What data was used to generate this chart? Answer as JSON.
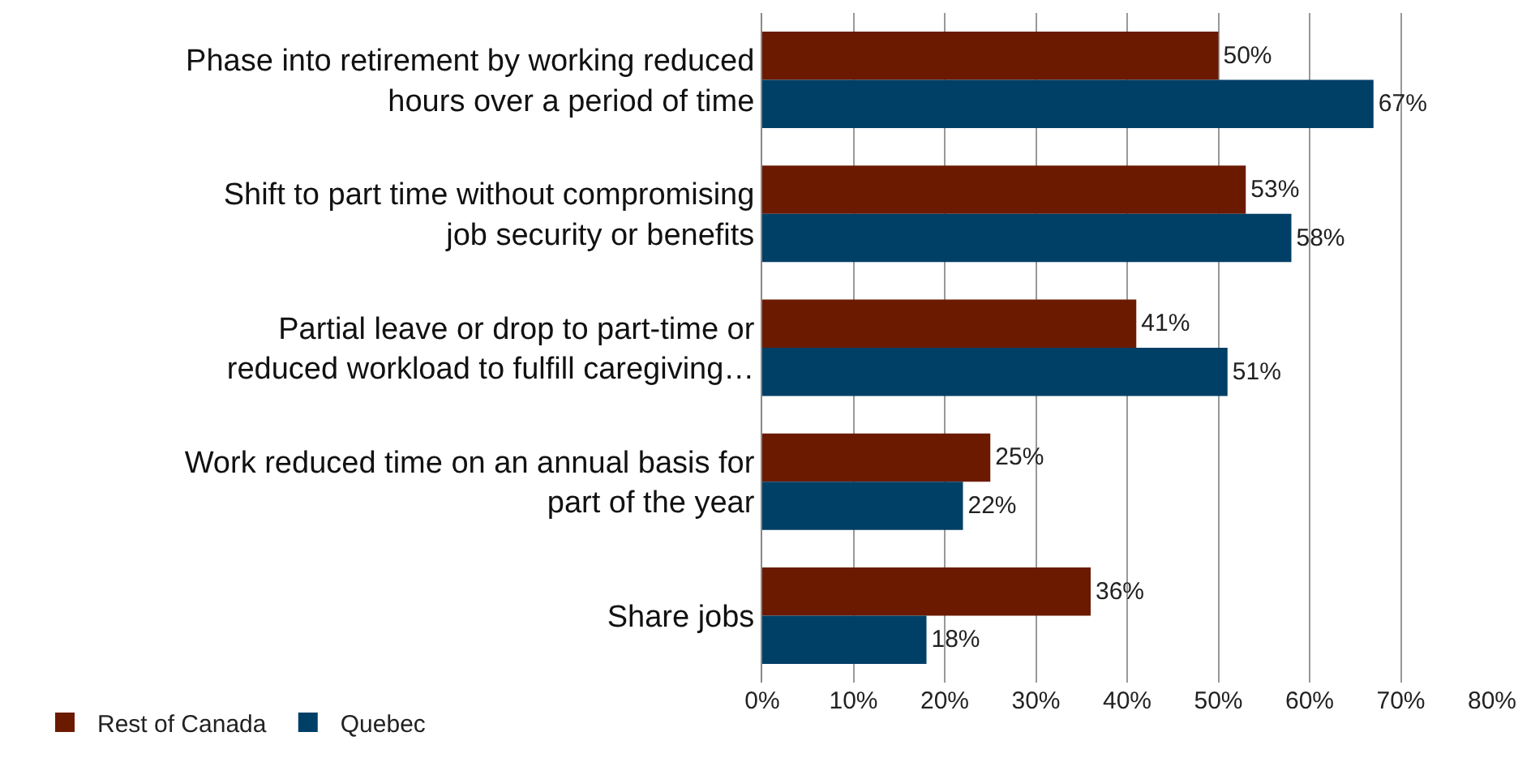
{
  "chart_data": {
    "type": "bar",
    "orientation": "horizontal",
    "categories": [
      "Phase into retirement by working reduced hours over a period of time",
      "Shift to part time without compromising job security or benefits",
      "Partial leave or drop to part-time or reduced workload to fulfill caregiving…",
      "Work reduced time on an annual basis for part of the year",
      "Share jobs"
    ],
    "series": [
      {
        "name": "Rest of Canada",
        "color": "#6b1a00",
        "values": [
          50,
          53,
          41,
          25,
          36
        ],
        "value_labels": [
          "50%",
          "53%",
          "41%",
          "25%",
          "36%"
        ]
      },
      {
        "name": "Quebec",
        "color": "#003f66",
        "values": [
          67,
          58,
          51,
          22,
          18
        ],
        "value_labels": [
          "67%",
          "58%",
          "51%",
          "22%",
          "18%"
        ]
      }
    ],
    "xlim": [
      0,
      80
    ],
    "xticks": [
      {
        "value": 0,
        "label": "0%"
      },
      {
        "value": 10,
        "label": "10%"
      },
      {
        "value": 20,
        "label": "20%"
      },
      {
        "value": 30,
        "label": "30%"
      },
      {
        "value": 40,
        "label": "40%"
      },
      {
        "value": 50,
        "label": "50%"
      },
      {
        "value": 60,
        "label": "60%"
      },
      {
        "value": 70,
        "label": "70%"
      },
      {
        "value": 80,
        "label": "80%"
      }
    ],
    "grid": "x",
    "legend": "bottom left"
  }
}
